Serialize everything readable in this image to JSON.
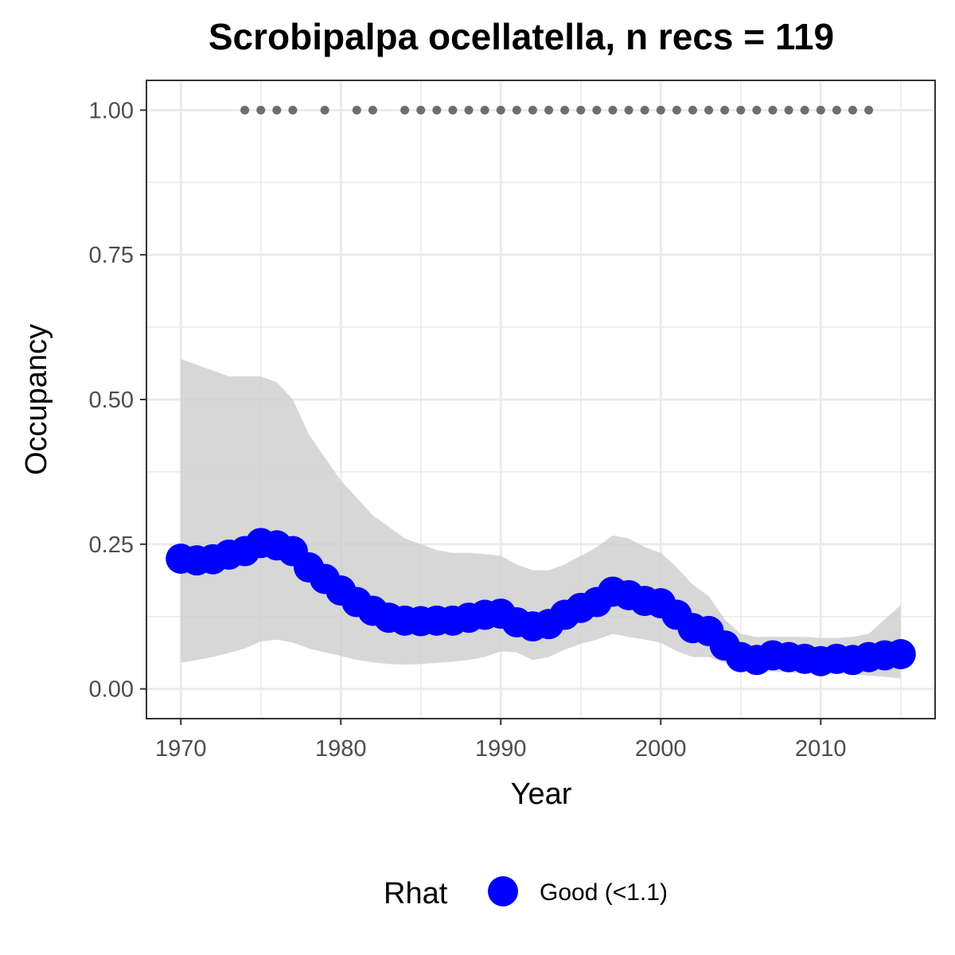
{
  "chart_data": {
    "type": "line",
    "title": "Scrobipalpa ocellatella, n recs = 119",
    "xlabel": "Year",
    "ylabel": "Occupancy",
    "xlim": [
      1967.9,
      2017.1
    ],
    "ylim": [
      -0.05,
      1.05
    ],
    "x_ticks": [
      1970,
      1980,
      1990,
      2000,
      2010
    ],
    "x_tick_labels": [
      "1970",
      "1980",
      "1990",
      "2000",
      "2010"
    ],
    "y_ticks": [
      0,
      0.25,
      0.5,
      0.75,
      1.0
    ],
    "y_tick_labels": [
      "0.00",
      "0.25",
      "0.50",
      "0.75",
      "1.00"
    ],
    "grid": true,
    "legend": {
      "title": "Rhat",
      "position": "bottom",
      "entries": [
        {
          "label": "Good (<1.1)",
          "color": "#0000ff"
        }
      ]
    },
    "colors": {
      "occupancy_points": "#0000ff",
      "credible_interval": "#cccccc",
      "record_years": "#6e6e6e",
      "grid": "#ebebeb",
      "panel_border": "#333333"
    },
    "series": [
      {
        "role": "mean-occupancy",
        "x": [
          1970,
          1971,
          1972,
          1973,
          1974,
          1975,
          1976,
          1977,
          1978,
          1979,
          1980,
          1981,
          1982,
          1983,
          1984,
          1985,
          1986,
          1987,
          1988,
          1989,
          1990,
          1991,
          1992,
          1993,
          1994,
          1995,
          1996,
          1997,
          1998,
          1999,
          2000,
          2001,
          2002,
          2003,
          2004,
          2005,
          2006,
          2007,
          2008,
          2009,
          2010,
          2011,
          2012,
          2013,
          2014,
          2015
        ],
        "y": [
          0.225,
          0.222,
          0.224,
          0.232,
          0.238,
          0.252,
          0.248,
          0.238,
          0.21,
          0.19,
          0.17,
          0.15,
          0.135,
          0.123,
          0.118,
          0.117,
          0.118,
          0.118,
          0.123,
          0.128,
          0.13,
          0.115,
          0.108,
          0.112,
          0.128,
          0.14,
          0.15,
          0.168,
          0.162,
          0.152,
          0.148,
          0.128,
          0.105,
          0.1,
          0.075,
          0.055,
          0.05,
          0.058,
          0.055,
          0.052,
          0.048,
          0.052,
          0.05,
          0.055,
          0.058,
          0.06
        ]
      },
      {
        "role": "credible-interval-upper",
        "x": [
          1970,
          1971,
          1972,
          1973,
          1974,
          1975,
          1976,
          1977,
          1978,
          1979,
          1980,
          1981,
          1982,
          1983,
          1984,
          1985,
          1986,
          1987,
          1988,
          1989,
          1990,
          1991,
          1992,
          1993,
          1994,
          1995,
          1996,
          1997,
          1998,
          1999,
          2000,
          2001,
          2002,
          2003,
          2004,
          2005,
          2006,
          2007,
          2008,
          2009,
          2010,
          2011,
          2012,
          2013,
          2014,
          2015
        ],
        "y": [
          0.57,
          0.56,
          0.55,
          0.54,
          0.54,
          0.54,
          0.53,
          0.5,
          0.44,
          0.4,
          0.36,
          0.33,
          0.3,
          0.28,
          0.26,
          0.25,
          0.24,
          0.235,
          0.235,
          0.233,
          0.23,
          0.215,
          0.205,
          0.205,
          0.215,
          0.23,
          0.245,
          0.265,
          0.26,
          0.245,
          0.235,
          0.21,
          0.18,
          0.16,
          0.12,
          0.095,
          0.09,
          0.09,
          0.09,
          0.09,
          0.088,
          0.088,
          0.09,
          0.095,
          0.12,
          0.145
        ]
      },
      {
        "role": "credible-interval-lower",
        "x": [
          1970,
          1971,
          1972,
          1973,
          1974,
          1975,
          1976,
          1977,
          1978,
          1979,
          1980,
          1981,
          1982,
          1983,
          1984,
          1985,
          1986,
          1987,
          1988,
          1989,
          1990,
          1991,
          1992,
          1993,
          1994,
          1995,
          1996,
          1997,
          1998,
          1999,
          2000,
          2001,
          2002,
          2003,
          2004,
          2005,
          2006,
          2007,
          2008,
          2009,
          2010,
          2011,
          2012,
          2013,
          2014,
          2015
        ],
        "y": [
          0.045,
          0.05,
          0.055,
          0.062,
          0.07,
          0.082,
          0.085,
          0.08,
          0.07,
          0.063,
          0.057,
          0.05,
          0.046,
          0.043,
          0.042,
          0.043,
          0.045,
          0.047,
          0.05,
          0.055,
          0.065,
          0.063,
          0.05,
          0.055,
          0.068,
          0.078,
          0.085,
          0.095,
          0.09,
          0.085,
          0.08,
          0.065,
          0.055,
          0.055,
          0.045,
          0.035,
          0.03,
          0.03,
          0.028,
          0.027,
          0.026,
          0.026,
          0.025,
          0.023,
          0.021,
          0.018
        ]
      },
      {
        "role": "years-with-records",
        "x": [
          1974,
          1975,
          1976,
          1977,
          1979,
          1981,
          1982,
          1984,
          1985,
          1986,
          1987,
          1988,
          1989,
          1990,
          1991,
          1992,
          1993,
          1994,
          1995,
          1996,
          1997,
          1998,
          1999,
          2000,
          2001,
          2002,
          2003,
          2004,
          2005,
          2006,
          2007,
          2008,
          2009,
          2010,
          2011,
          2012,
          2013
        ],
        "y_value": 1.0
      }
    ]
  }
}
